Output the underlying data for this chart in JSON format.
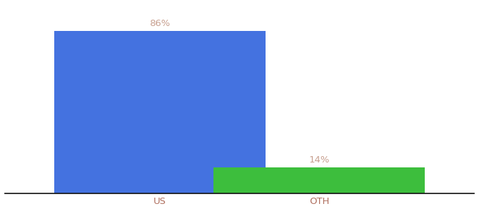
{
  "categories": [
    "US",
    "OTH"
  ],
  "values": [
    86,
    14
  ],
  "bar_colors": [
    "#4472e0",
    "#3dbe3d"
  ],
  "label_texts": [
    "86%",
    "14%"
  ],
  "label_color": "#c8a090",
  "xlabel": "",
  "ylabel": "",
  "ylim": [
    0,
    100
  ],
  "background_color": "#ffffff",
  "bar_width": 0.45,
  "label_fontsize": 9.5,
  "tick_fontsize": 9.5,
  "tick_color": "#b07060",
  "x_positions": [
    0.33,
    0.67
  ],
  "xlim": [
    0,
    1
  ]
}
